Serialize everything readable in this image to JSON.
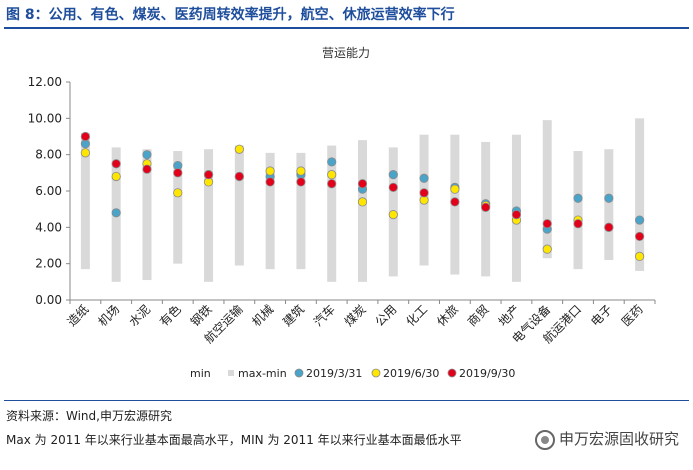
{
  "figure_title": "图 8：公用、有色、煤炭、医药周转效率提升，航空、休旅运营效率下行",
  "source": "资料来源：Wind,申万宏源研究",
  "note": "Max 为 2011 年以来行业基本面最高水平，MIN 为 2011 年以来行业基本面最低水平",
  "watermark": "申万宏源固收研究",
  "colors": {
    "title": "#1f4e9c",
    "bar": "#d9d9d9",
    "q1": "#4aa3c9",
    "q2": "#ffe600",
    "q3": "#e3001b",
    "marker_edge": "#8a8a8a"
  },
  "chart_data": {
    "type": "bar",
    "title": "营运能力",
    "ylim": [
      0,
      12
    ],
    "yticks": [
      "0.00",
      "2.00",
      "4.00",
      "6.00",
      "8.00",
      "10.00",
      "12.00"
    ],
    "categories": [
      "造纸",
      "机场",
      "水泥",
      "有色",
      "钢铁",
      "航空运输",
      "机械",
      "建筑",
      "汽车",
      "煤炭",
      "公用",
      "化工",
      "休旅",
      "商贸",
      "地产",
      "电气设备",
      "航运港口",
      "电子",
      "医药"
    ],
    "legend": [
      "min",
      "max-min",
      "2019/3/31",
      "2019/6/30",
      "2019/9/30"
    ],
    "grid": false,
    "series": [
      {
        "name": "min",
        "values": [
          1.7,
          1.0,
          1.1,
          2.0,
          1.0,
          1.9,
          1.7,
          1.7,
          1.0,
          1.0,
          1.3,
          1.9,
          1.4,
          1.3,
          1.0,
          2.3,
          1.7,
          2.2,
          1.6
        ]
      },
      {
        "name": "max-min",
        "values": [
          7.5,
          7.4,
          7.2,
          6.2,
          7.3,
          6.6,
          6.4,
          6.4,
          7.5,
          7.8,
          7.1,
          7.2,
          7.7,
          7.4,
          8.1,
          7.6,
          6.5,
          6.1,
          8.4
        ]
      },
      {
        "name": "2019/3/31",
        "values": [
          8.6,
          4.8,
          8.0,
          7.4,
          6.9,
          6.8,
          6.8,
          6.9,
          7.6,
          6.1,
          6.9,
          6.7,
          6.2,
          5.3,
          4.9,
          3.9,
          5.6,
          5.6,
          4.4
        ]
      },
      {
        "name": "2019/6/30",
        "values": [
          8.1,
          6.8,
          7.5,
          5.9,
          6.5,
          8.3,
          7.1,
          7.1,
          6.9,
          5.4,
          4.7,
          5.5,
          6.1,
          5.2,
          4.4,
          2.8,
          4.4,
          4.0,
          2.4
        ]
      },
      {
        "name": "2019/9/30",
        "values": [
          9.0,
          7.5,
          7.2,
          7.0,
          6.9,
          6.8,
          6.5,
          6.5,
          6.4,
          6.4,
          6.2,
          5.9,
          5.4,
          5.1,
          4.7,
          4.2,
          4.2,
          4.0,
          3.5
        ]
      }
    ]
  }
}
